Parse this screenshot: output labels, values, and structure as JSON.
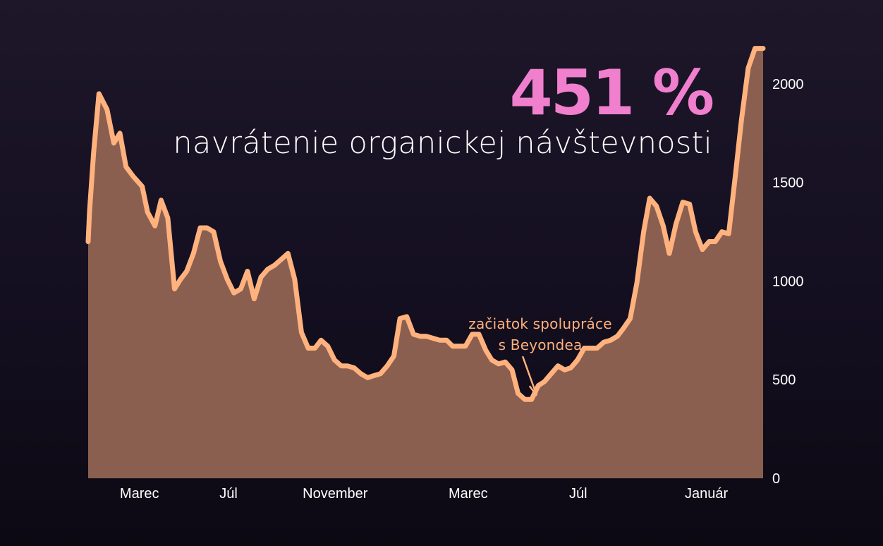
{
  "headline": {
    "big_value": "451 %",
    "subtitle": "navrátenie organickej návštevnosti"
  },
  "annotation": {
    "line1": "začiatok spolupráce",
    "line2": "s Beyondea"
  },
  "colors": {
    "accent": "#f07fce",
    "line": "#ffb27e",
    "area": "#8b5f4f",
    "text": "#ffffff"
  },
  "chart_data": {
    "type": "area",
    "title": "",
    "xlabel": "",
    "ylabel": "",
    "y_axis_side": "right",
    "ylim": [
      0,
      2200
    ],
    "yticks": [
      0,
      500,
      1000,
      1500,
      2000
    ],
    "x_range": [
      0,
      100
    ],
    "x_ticks": [
      {
        "x": 7.6,
        "label": "Marec"
      },
      {
        "x": 20.8,
        "label": "Júl"
      },
      {
        "x": 36.6,
        "label": "November"
      },
      {
        "x": 56.3,
        "label": "Marec"
      },
      {
        "x": 72.6,
        "label": "Júl"
      },
      {
        "x": 91.6,
        "label": "Január"
      }
    ],
    "annotation_x": 66.5,
    "series": [
      {
        "values": [
          [
            0.0,
            1200
          ],
          [
            0.2,
            1350
          ],
          [
            0.8,
            1650
          ],
          [
            1.6,
            1950
          ],
          [
            2.8,
            1870
          ],
          [
            3.8,
            1700
          ],
          [
            4.7,
            1750
          ],
          [
            5.6,
            1580
          ],
          [
            6.7,
            1530
          ],
          [
            8.0,
            1480
          ],
          [
            8.8,
            1350
          ],
          [
            9.9,
            1280
          ],
          [
            10.8,
            1410
          ],
          [
            11.8,
            1320
          ],
          [
            12.8,
            960
          ],
          [
            13.7,
            1010
          ],
          [
            14.6,
            1050
          ],
          [
            15.6,
            1140
          ],
          [
            16.6,
            1270
          ],
          [
            17.6,
            1270
          ],
          [
            18.6,
            1250
          ],
          [
            19.6,
            1100
          ],
          [
            20.6,
            1010
          ],
          [
            21.6,
            940
          ],
          [
            22.6,
            960
          ],
          [
            23.6,
            1050
          ],
          [
            24.6,
            910
          ],
          [
            25.6,
            1020
          ],
          [
            26.6,
            1060
          ],
          [
            27.6,
            1080
          ],
          [
            28.6,
            1110
          ],
          [
            29.6,
            1140
          ],
          [
            30.6,
            1010
          ],
          [
            31.6,
            740
          ],
          [
            32.6,
            660
          ],
          [
            33.6,
            660
          ],
          [
            34.5,
            700
          ],
          [
            35.5,
            670
          ],
          [
            36.5,
            600
          ],
          [
            37.5,
            570
          ],
          [
            38.4,
            570
          ],
          [
            39.4,
            560
          ],
          [
            40.4,
            530
          ],
          [
            41.4,
            510
          ],
          [
            42.3,
            520
          ],
          [
            43.3,
            530
          ],
          [
            44.3,
            570
          ],
          [
            45.3,
            620
          ],
          [
            46.2,
            810
          ],
          [
            47.2,
            820
          ],
          [
            48.2,
            730
          ],
          [
            49.2,
            720
          ],
          [
            50.1,
            720
          ],
          [
            51.1,
            710
          ],
          [
            52.1,
            700
          ],
          [
            53.1,
            700
          ],
          [
            54.0,
            670
          ],
          [
            55.0,
            670
          ],
          [
            55.9,
            670
          ],
          [
            56.9,
            730
          ],
          [
            57.9,
            730
          ],
          [
            58.9,
            650
          ],
          [
            59.8,
            600
          ],
          [
            60.8,
            580
          ],
          [
            61.8,
            590
          ],
          [
            62.8,
            550
          ],
          [
            63.7,
            430
          ],
          [
            64.7,
            400
          ],
          [
            65.7,
            400
          ],
          [
            66.7,
            470
          ],
          [
            67.6,
            490
          ],
          [
            68.6,
            530
          ],
          [
            69.6,
            570
          ],
          [
            70.6,
            550
          ],
          [
            71.5,
            560
          ],
          [
            72.5,
            600
          ],
          [
            73.5,
            660
          ],
          [
            74.5,
            660
          ],
          [
            75.4,
            660
          ],
          [
            76.4,
            690
          ],
          [
            77.4,
            700
          ],
          [
            78.4,
            720
          ],
          [
            79.3,
            760
          ],
          [
            80.3,
            810
          ],
          [
            81.3,
            990
          ],
          [
            82.3,
            1250
          ],
          [
            83.2,
            1420
          ],
          [
            84.2,
            1380
          ],
          [
            85.2,
            1280
          ],
          [
            86.1,
            1140
          ],
          [
            87.1,
            1290
          ],
          [
            88.1,
            1400
          ],
          [
            89.1,
            1390
          ],
          [
            90.0,
            1250
          ],
          [
            91.0,
            1160
          ],
          [
            92.0,
            1200
          ],
          [
            92.9,
            1200
          ],
          [
            93.9,
            1250
          ],
          [
            94.9,
            1240
          ],
          [
            95.9,
            1540
          ],
          [
            96.8,
            1820
          ],
          [
            97.8,
            2080
          ],
          [
            98.8,
            2180
          ],
          [
            100.0,
            2180
          ]
        ]
      }
    ]
  }
}
